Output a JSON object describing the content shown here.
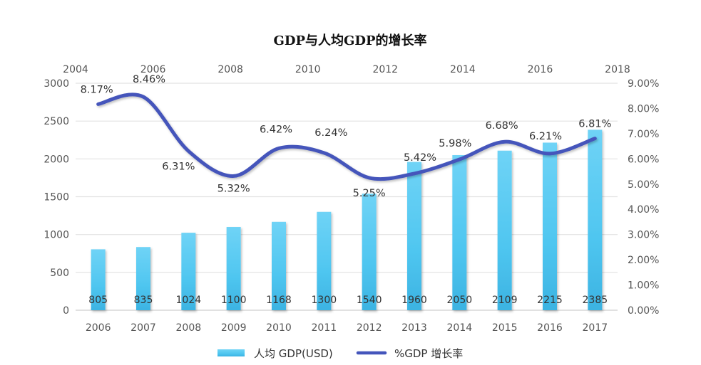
{
  "chart_data": {
    "type": "bar+line",
    "title": "GDP与人均GDP的增长率",
    "categories": [
      "2006",
      "2007",
      "2008",
      "2009",
      "2010",
      "2011",
      "2012",
      "2013",
      "2014",
      "2015",
      "2016",
      "2017"
    ],
    "series": [
      {
        "name": "人均 GDP(USD)",
        "type": "bar",
        "axis": "left",
        "color": "#4fc3ec",
        "values": [
          805,
          835,
          1024,
          1100,
          1168,
          1300,
          1540,
          1960,
          2050,
          2109,
          2215,
          2385
        ],
        "data_labels": [
          "805",
          "835",
          "1024",
          "1100",
          "1168",
          "1300",
          "1540",
          "1960",
          "2050",
          "2109",
          "2215",
          "2385"
        ]
      },
      {
        "name": "%GDP 增长率",
        "type": "line",
        "axis": "right",
        "color": "#4455bb",
        "smooth": true,
        "values": [
          8.17,
          8.46,
          6.31,
          5.32,
          6.42,
          6.24,
          5.25,
          5.42,
          5.98,
          6.68,
          6.21,
          6.81
        ],
        "data_labels": [
          "8.17%",
          "8.46%",
          "6.31%",
          "5.32%",
          "6.42%",
          "6.24%",
          "5.25%",
          "5.42%",
          "5.98%",
          "6.68%",
          "6.21%",
          "6.81%"
        ]
      }
    ],
    "left_axis": {
      "ylim": [
        0,
        3000
      ],
      "ticks": [
        "0",
        "500",
        "1000",
        "1500",
        "2000",
        "2500",
        "3000"
      ]
    },
    "right_axis": {
      "ylim": [
        0,
        9
      ],
      "ticks": [
        "0.00%",
        "1.00%",
        "2.00%",
        "3.00%",
        "4.00%",
        "5.00%",
        "6.00%",
        "7.00%",
        "8.00%",
        "9.00%"
      ]
    },
    "bottom_axis": {
      "ticks": [
        "2006",
        "2007",
        "2008",
        "2009",
        "2010",
        "2011",
        "2012",
        "2013",
        "2014",
        "2015",
        "2016",
        "2017"
      ]
    },
    "top_axis": {
      "xlim": [
        2004,
        2018
      ],
      "ticks": [
        "2004",
        "2006",
        "2008",
        "2010",
        "2012",
        "2014",
        "2016",
        "2018"
      ]
    },
    "grid": true,
    "legend": {
      "position": "bottom",
      "entries": [
        "人均 GDP(USD)",
        "%GDP 增长率"
      ]
    }
  }
}
